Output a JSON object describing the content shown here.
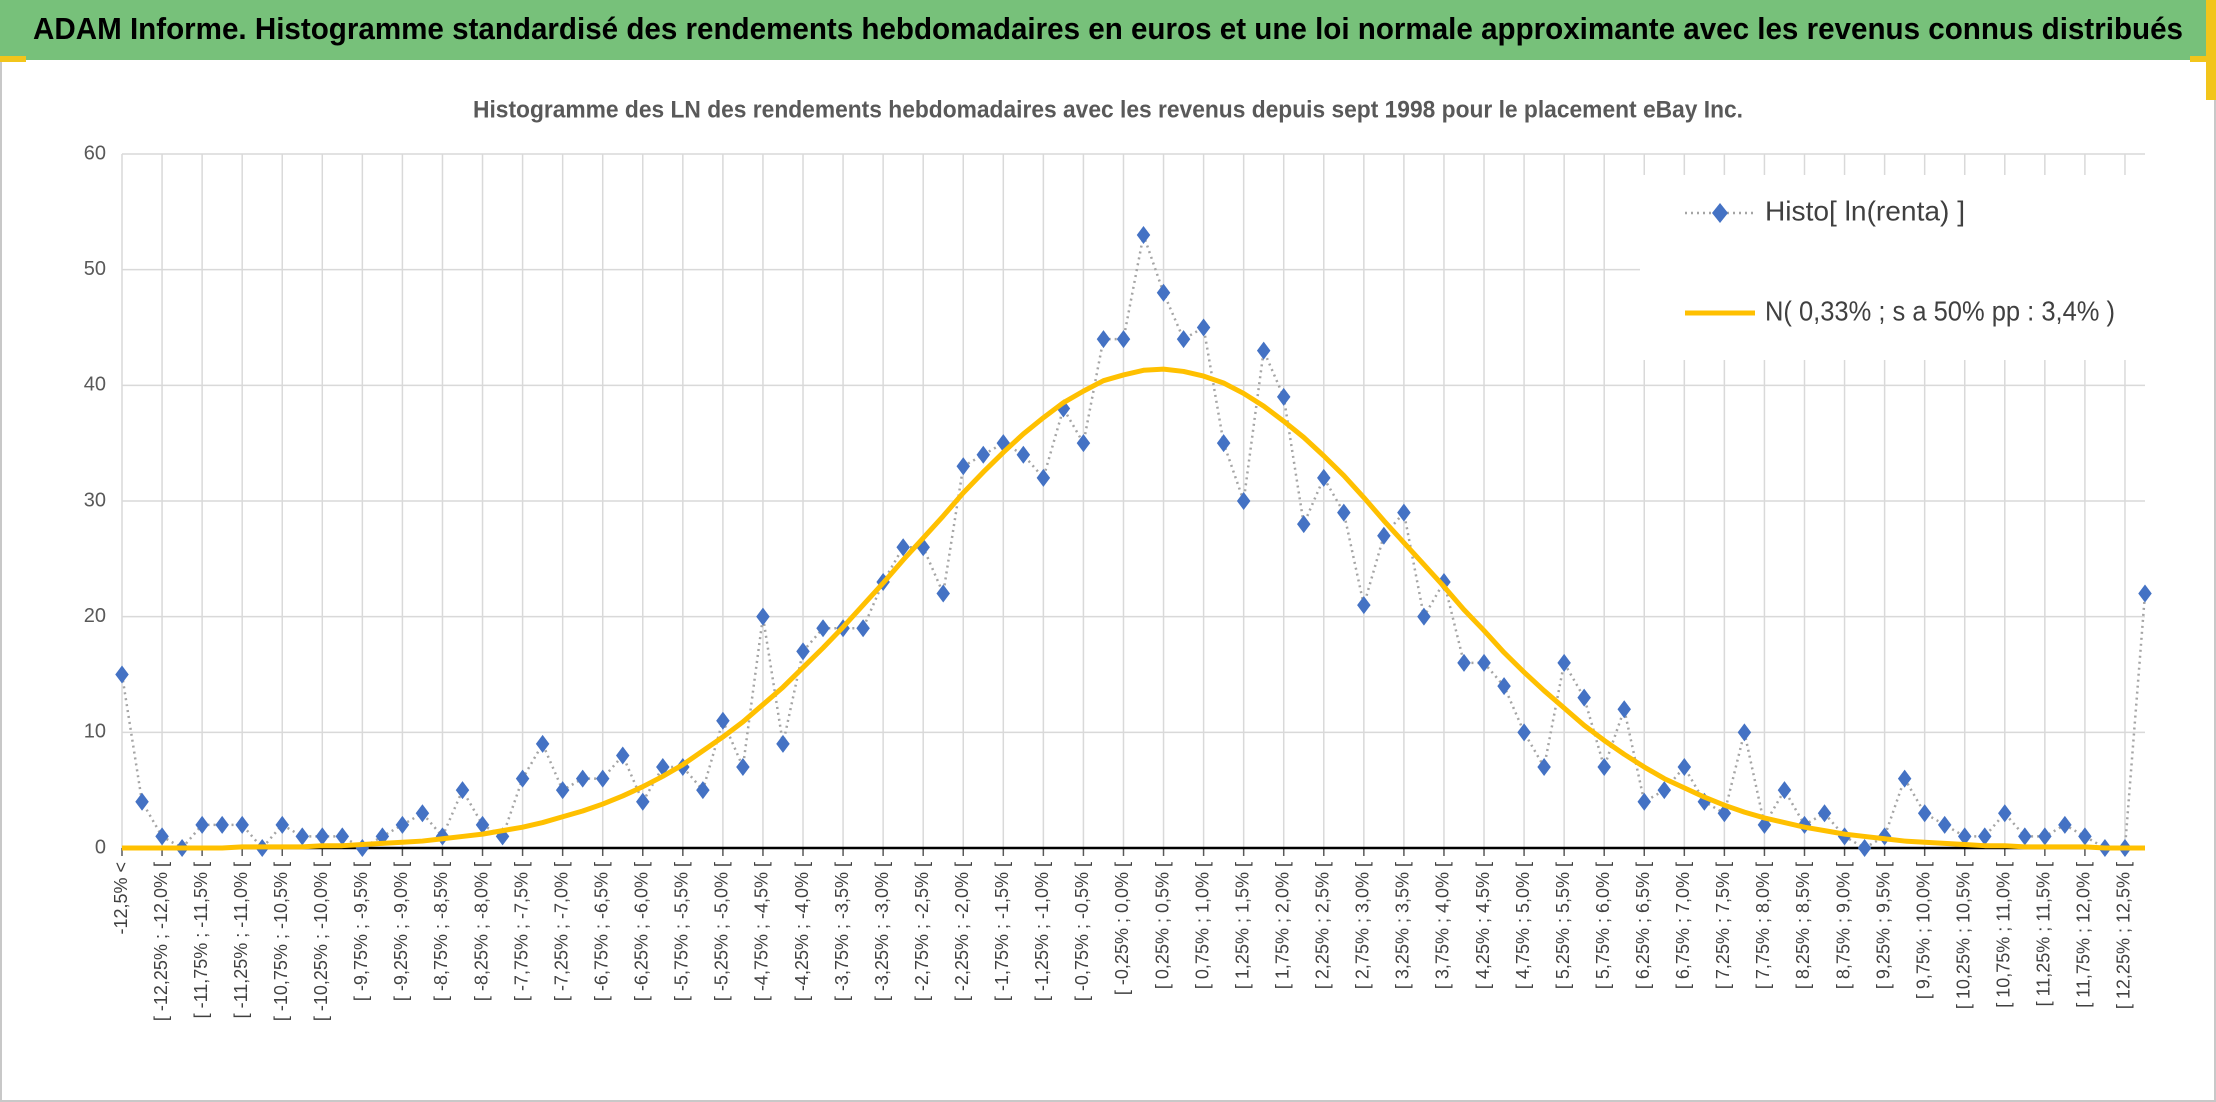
{
  "header": {
    "title": "ADAM Informe. Histogramme standardisé des rendements hebdomadaires en euros et une loi normale approximante avec les revenus connus distribués"
  },
  "chart_data": {
    "type": "line",
    "title": "Histogramme des LN des rendements hebdomadaires avec les revenus depuis sept 1998 pour le placement eBay Inc.",
    "categories": [
      "-12,5% <",
      null,
      "[ -12,25% ; -12,0% [",
      null,
      "[ -11,75% ; -11,5% [",
      null,
      "[ -11,25% ; -11,0% [",
      null,
      "[ -10,75% ; -10,5% [",
      null,
      "[ -10,25% ; -10,0% [",
      null,
      "[ -9,75% ; -9,5% [",
      null,
      "[ -9,25% ; -9,0% [",
      null,
      "[ -8,75% ; -8,5% [",
      null,
      "[ -8,25% ; -8,0% [",
      null,
      "[ -7,75% ; -7,5% [",
      null,
      "[ -7,25% ; -7,0% [",
      null,
      "[ -6,75% ; -6,5% [",
      null,
      "[ -6,25% ; -6,0% [",
      null,
      "[ -5,75% ; -5,5% [",
      null,
      "[ -5,25% ; -5,0% [",
      null,
      "[ -4,75% ; -4,5% [",
      null,
      "[ -4,25% ; -4,0% [",
      null,
      "[ -3,75% ; -3,5% [",
      null,
      "[ -3,25% ; -3,0% [",
      null,
      "[ -2,75% ; -2,5% [",
      null,
      "[ -2,25% ; -2,0% [",
      null,
      "[ -1,75% ; -1,5% [",
      null,
      "[ -1,25% ; -1,0% [",
      null,
      "[ -0,75% ; -0,5% [",
      null,
      "[ -0,25% ; 0,0% [",
      null,
      "[ 0,25% ; 0,5% [",
      null,
      "[ 0,75% ; 1,0% [",
      null,
      "[ 1,25% ; 1,5% [",
      null,
      "[ 1,75% ; 2,0% [",
      null,
      "[ 2,25% ; 2,5% [",
      null,
      "[ 2,75% ; 3,0% [",
      null,
      "[ 3,25% ; 3,5% [",
      null,
      "[ 3,75% ; 4,0% [",
      null,
      "[ 4,25% ; 4,5% [",
      null,
      "[ 4,75% ; 5,0% [",
      null,
      "[ 5,25% ; 5,5% [",
      null,
      "[ 5,75% ; 6,0% [",
      null,
      "[ 6,25% ; 6,5% [",
      null,
      "[ 6,75% ; 7,0% [",
      null,
      "[ 7,25% ; 7,5% [",
      null,
      "[ 7,75% ; 8,0% [",
      null,
      "[ 8,25% ; 8,5% [",
      null,
      "[ 8,75% ; 9,0% [",
      null,
      "[ 9,25% ; 9,5% [",
      null,
      "[ 9,75% ; 10,0% [",
      null,
      "[ 10,25% ; 10,5% [",
      null,
      "[ 10,75% ; 11,0% [",
      null,
      "[ 11,25% ; 11,5% [",
      null,
      "[ 11,75% ; 12,0% [",
      null,
      "[ 12,25% ; 12,5% [",
      null
    ],
    "series": [
      {
        "name": "Histo[ ln(renta) ]",
        "color": "#4472c4",
        "line_color": "#a5a5a5",
        "marker": "diamond",
        "values": [
          15,
          4,
          1,
          0,
          2,
          2,
          2,
          0,
          2,
          1,
          1,
          1,
          0,
          1,
          2,
          3,
          1,
          5,
          2,
          1,
          6,
          9,
          5,
          6,
          6,
          8,
          4,
          7,
          7,
          5,
          11,
          7,
          20,
          9,
          17,
          19,
          19,
          19,
          23,
          26,
          26,
          22,
          33,
          34,
          35,
          34,
          32,
          38,
          35,
          44,
          44,
          53,
          48,
          44,
          45,
          35,
          30,
          43,
          39,
          28,
          32,
          29,
          21,
          27,
          29,
          20,
          23,
          16,
          16,
          14,
          10,
          7,
          16,
          13,
          7,
          12,
          4,
          5,
          7,
          4,
          3,
          10,
          2,
          5,
          2,
          3,
          1,
          0,
          1,
          6,
          3,
          2,
          1,
          1,
          3,
          1,
          1,
          2,
          1,
          0,
          0,
          22
        ]
      },
      {
        "name": "N( 0,33% ; s a 50% pp : 3,4% )",
        "color": "#ffc000",
        "values": [
          0.0,
          0.0,
          0.0,
          0.0,
          0.0,
          0.0,
          0.1,
          0.1,
          0.1,
          0.1,
          0.2,
          0.2,
          0.3,
          0.4,
          0.5,
          0.6,
          0.8,
          1.0,
          1.2,
          1.5,
          1.8,
          2.2,
          2.7,
          3.2,
          3.8,
          4.5,
          5.3,
          6.2,
          7.2,
          8.4,
          9.6,
          10.9,
          12.4,
          13.9,
          15.6,
          17.3,
          19.1,
          21.0,
          22.9,
          24.9,
          26.8,
          28.7,
          30.7,
          32.5,
          34.2,
          35.8,
          37.2,
          38.5,
          39.5,
          40.4,
          40.9,
          41.3,
          41.4,
          41.2,
          40.8,
          40.2,
          39.3,
          38.2,
          36.9,
          35.5,
          33.9,
          32.2,
          30.3,
          28.3,
          26.4,
          24.5,
          22.6,
          20.6,
          18.8,
          16.9,
          15.2,
          13.6,
          12.1,
          10.6,
          9.3,
          8.1,
          7.0,
          6.0,
          5.2,
          4.4,
          3.7,
          3.1,
          2.6,
          2.2,
          1.8,
          1.5,
          1.2,
          1.0,
          0.8,
          0.6,
          0.5,
          0.4,
          0.3,
          0.2,
          0.2,
          0.1,
          0.1,
          0.1,
          0.1,
          0.0,
          0.0,
          0.0
        ]
      }
    ],
    "ylim": [
      0,
      60
    ],
    "yticks": [
      0,
      10,
      20,
      30,
      40,
      50,
      60
    ],
    "grid": true,
    "legend": "upper right"
  }
}
